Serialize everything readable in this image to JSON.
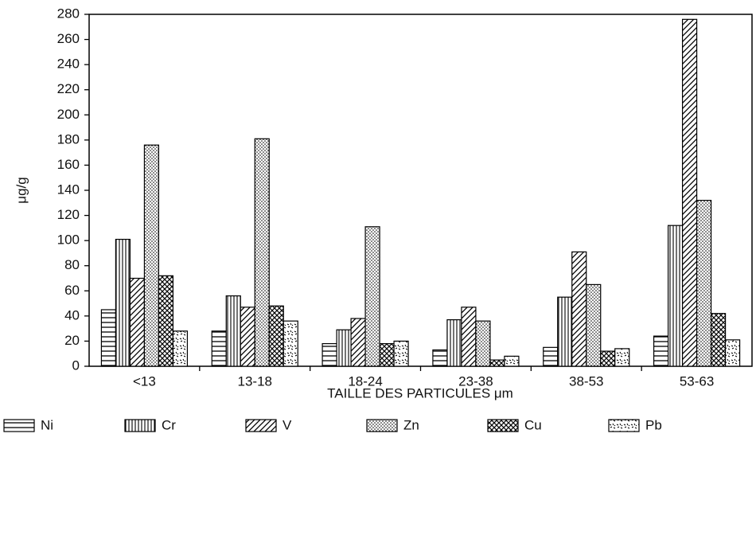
{
  "chart_data": {
    "type": "bar",
    "x_label": "TAILLE DES PARTICULES μm",
    "y_label": "μg/g",
    "categories": [
      "<13",
      "13-18",
      "18-24",
      "23-38",
      "38-53",
      "53-63"
    ],
    "series": [
      {
        "name": "Ni",
        "color": "#000000",
        "values": [
          45,
          28,
          18,
          13,
          15,
          24
        ]
      },
      {
        "name": "Cr",
        "color": "#000000",
        "values": [
          101,
          56,
          29,
          37,
          55,
          112
        ]
      },
      {
        "name": "V",
        "color": "#000000",
        "values": [
          70,
          47,
          38,
          47,
          91,
          276
        ]
      },
      {
        "name": "Zn",
        "color": "#000000",
        "values": [
          176,
          181,
          111,
          36,
          65,
          132
        ]
      },
      {
        "name": "Cu",
        "color": "#000000",
        "values": [
          72,
          48,
          18,
          5,
          12,
          42
        ]
      },
      {
        "name": "Pb",
        "color": "#000000",
        "values": [
          28,
          36,
          20,
          8,
          14,
          21
        ]
      }
    ],
    "ylim": [
      0,
      280
    ],
    "yticks": [
      0,
      20,
      40,
      60,
      80,
      100,
      120,
      140,
      160,
      180,
      200,
      220,
      240,
      260,
      280
    ],
    "grid": false
  }
}
